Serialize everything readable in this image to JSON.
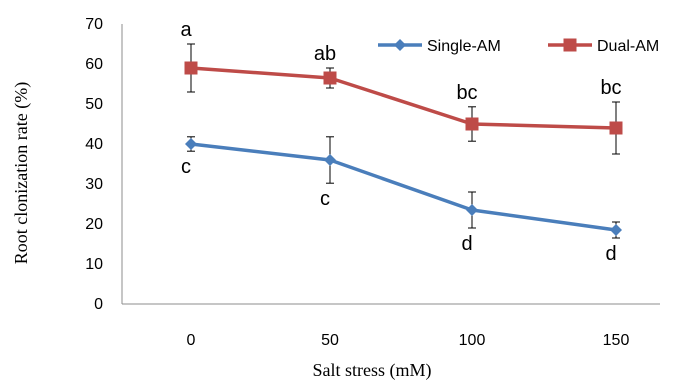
{
  "chart_data": {
    "type": "line",
    "xlabel": "Salt stress (mM)",
    "ylabel": "Root clonization rate (%)",
    "ylim": [
      0,
      70
    ],
    "yticks": [
      0,
      10,
      20,
      30,
      40,
      50,
      60,
      70
    ],
    "categories": [
      "0",
      "50",
      "100",
      "150"
    ],
    "legend_position": "top-right",
    "series": [
      {
        "name": "Single-AM",
        "color": "#4A7EBB",
        "marker": "diamond",
        "values": [
          40,
          36,
          23.5,
          18.5
        ],
        "error": [
          1.8,
          5.8,
          4.5,
          2
        ],
        "labels": [
          "c",
          "c",
          "d",
          "d"
        ]
      },
      {
        "name": "Dual-AM",
        "color": "#BE4B48",
        "marker": "square",
        "values": [
          59,
          56.5,
          45,
          44
        ],
        "error": [
          6,
          2.5,
          4.3,
          6.5
        ],
        "labels": [
          "a",
          "ab",
          "bc",
          "bc"
        ]
      }
    ]
  }
}
